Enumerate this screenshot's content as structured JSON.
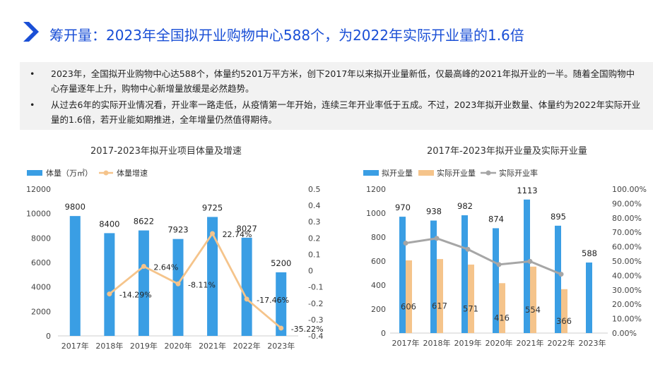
{
  "header": {
    "title": "筹开量：2023年全国拟开业购物中心588个，为2022年实际开业量的1.6倍"
  },
  "bullets": [
    "2023年，全国拟开业购物中心达588个，体量约5201万平方米，创下2017年以来拟开业量新低，仅最高峰的2021年拟开业的一半。随着全国购物中心存量逐年上升，购物中心新增量放缓是必然趋势。",
    "从过去6年的实际开业情况看，开业率一路走低，从疫情第一年开始，连续三年开业率低于五成。不过，2023年拟开业数量、体量约为2022年实际开业量的1.6倍，若开业能如期推进，全年增量仍然值得期待。"
  ],
  "bullet_symbol": "•",
  "colors": {
    "blue": "#3a9ee4",
    "orange": "#f5c48b",
    "gray": "#a6a6a6",
    "title": "#1a4fd6"
  },
  "chart_data": [
    {
      "type": "bar",
      "title": "2017-2023年拟开业项目体量及增速",
      "categories": [
        "2017年",
        "2018年",
        "2019年",
        "2020年",
        "2021年",
        "2022年",
        "2023年"
      ],
      "series": [
        {
          "name": "体量（万㎡）",
          "type": "bar",
          "axis": "left",
          "values": [
            9800,
            8400,
            8622,
            7923,
            9725,
            8027,
            5200
          ],
          "labels": [
            "9800",
            "8400",
            "8622",
            "7923",
            "9725",
            "8027",
            "5200"
          ]
        },
        {
          "name": "体量增速",
          "type": "line",
          "axis": "right",
          "values": [
            null,
            -0.1429,
            0.0264,
            -0.0811,
            0.2274,
            -0.1746,
            -0.3522
          ],
          "labels": [
            "",
            "-14.29%",
            "2.64%",
            "-8.11%",
            "22.74%",
            "-17.46%",
            "-35.22%"
          ]
        }
      ],
      "yticks_left": [
        "0",
        "2000",
        "4000",
        "6000",
        "8000",
        "10000",
        "12000"
      ],
      "yticks_right": [
        "-0.4",
        "-0.3",
        "-0.2",
        "-0.1",
        "0",
        "0.1",
        "0.2",
        "0.3",
        "0.4",
        "0.5"
      ],
      "ylim_left": [
        0,
        12000
      ],
      "ylim_right": [
        -0.4,
        0.5
      ],
      "legend": "top-left"
    },
    {
      "type": "bar",
      "title": "2017年-2023年拟开业量及实际开业量",
      "categories": [
        "2017年",
        "2018年",
        "2019年",
        "2020年",
        "2021年",
        "2022年",
        "2023年"
      ],
      "series": [
        {
          "name": "拟开业量",
          "type": "bar",
          "axis": "left",
          "values": [
            970,
            938,
            982,
            874,
            1113,
            895,
            588
          ],
          "labels": [
            "970",
            "938",
            "982",
            "874",
            "1113",
            "895",
            "588"
          ]
        },
        {
          "name": "实际开业量",
          "type": "bar",
          "axis": "left",
          "values": [
            606,
            617,
            571,
            416,
            554,
            366,
            null
          ],
          "labels": [
            "606",
            "617",
            "571",
            "416",
            "554",
            "366",
            ""
          ]
        },
        {
          "name": "实际开业率",
          "type": "line",
          "axis": "right",
          "values": [
            0.625,
            0.658,
            0.582,
            0.476,
            0.498,
            0.409,
            null
          ]
        }
      ],
      "yticks_left": [
        "0",
        "200",
        "400",
        "600",
        "800",
        "1000",
        "1200"
      ],
      "yticks_right": [
        "0.00%",
        "10.00%",
        "20.00%",
        "30.00%",
        "40.00%",
        "50.00%",
        "60.00%",
        "70.00%",
        "80.00%",
        "90.00%",
        "100.00%"
      ],
      "ylim_left": [
        0,
        1200
      ],
      "ylim_right": [
        0,
        1.0
      ],
      "legend": "top-left"
    }
  ]
}
